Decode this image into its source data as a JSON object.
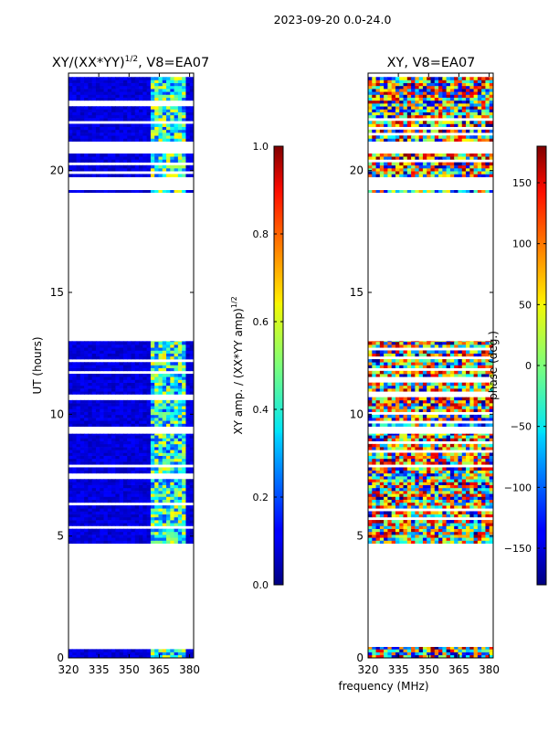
{
  "suptitle": "2023-09-20 0.0-24.0",
  "xlabel": "frequency (MHz)",
  "chart_data": [
    {
      "type": "heatmap",
      "title": "XY/(XX*YY)^1/2, V8=EA07",
      "title_main": "XY/(XX*YY)",
      "title_sup": "1/2",
      "title_tail": ", V8=EA07",
      "ylabel": "UT (hours)",
      "xlim": [
        320,
        382
      ],
      "ylim": [
        0,
        24
      ],
      "xticks": [
        "320",
        "335",
        "350",
        "365",
        "380"
      ],
      "xtick_values": [
        320,
        335,
        350,
        365,
        380
      ],
      "yticks": [
        "0",
        "5",
        "10",
        "15",
        "20"
      ],
      "ytick_values": [
        0,
        5,
        10,
        15,
        20
      ],
      "colorbar": {
        "label_main": "XY amp. / (XX*YY amp)",
        "label_sup": "1/2",
        "range": [
          0,
          1
        ],
        "ticks": [
          "0.0",
          "0.2",
          "0.4",
          "0.6",
          "0.8",
          "1.0"
        ],
        "tick_values": [
          0,
          0.2,
          0.4,
          0.6,
          0.8,
          1.0
        ]
      },
      "data_time_ranges_hours": [
        [
          0.0,
          0.45
        ],
        [
          4.7,
          9.2
        ],
        [
          9.5,
          13.0
        ],
        [
          19.1,
          19.2
        ],
        [
          19.5,
          20.7
        ],
        [
          21.2,
          24.0
        ]
      ],
      "high_value_freq_band_MHz": [
        360,
        378
      ],
      "typical_value_low_band": 0.05,
      "typical_value_high_band": 0.55
    },
    {
      "type": "heatmap",
      "title": "XY, V8=EA07",
      "xlim": [
        320,
        382
      ],
      "ylim": [
        0,
        24
      ],
      "xticks": [
        "320",
        "335",
        "350",
        "365",
        "380"
      ],
      "xtick_values": [
        320,
        335,
        350,
        365,
        380
      ],
      "yticks": [
        "0",
        "5",
        "10",
        "15",
        "20"
      ],
      "ytick_values": [
        0,
        5,
        10,
        15,
        20
      ],
      "colorbar": {
        "label": "phase (deg.)",
        "range": [
          -180,
          180
        ],
        "ticks": [
          "−150",
          "−100",
          "−50",
          "0",
          "50",
          "100",
          "150"
        ],
        "tick_values": [
          -150,
          -100,
          -50,
          0,
          50,
          100,
          150
        ]
      },
      "data_time_ranges_hours": [
        [
          0.0,
          0.45
        ],
        [
          4.7,
          9.2
        ],
        [
          9.5,
          13.0
        ],
        [
          19.1,
          19.2
        ],
        [
          19.5,
          20.7
        ],
        [
          21.2,
          24.0
        ]
      ]
    }
  ]
}
